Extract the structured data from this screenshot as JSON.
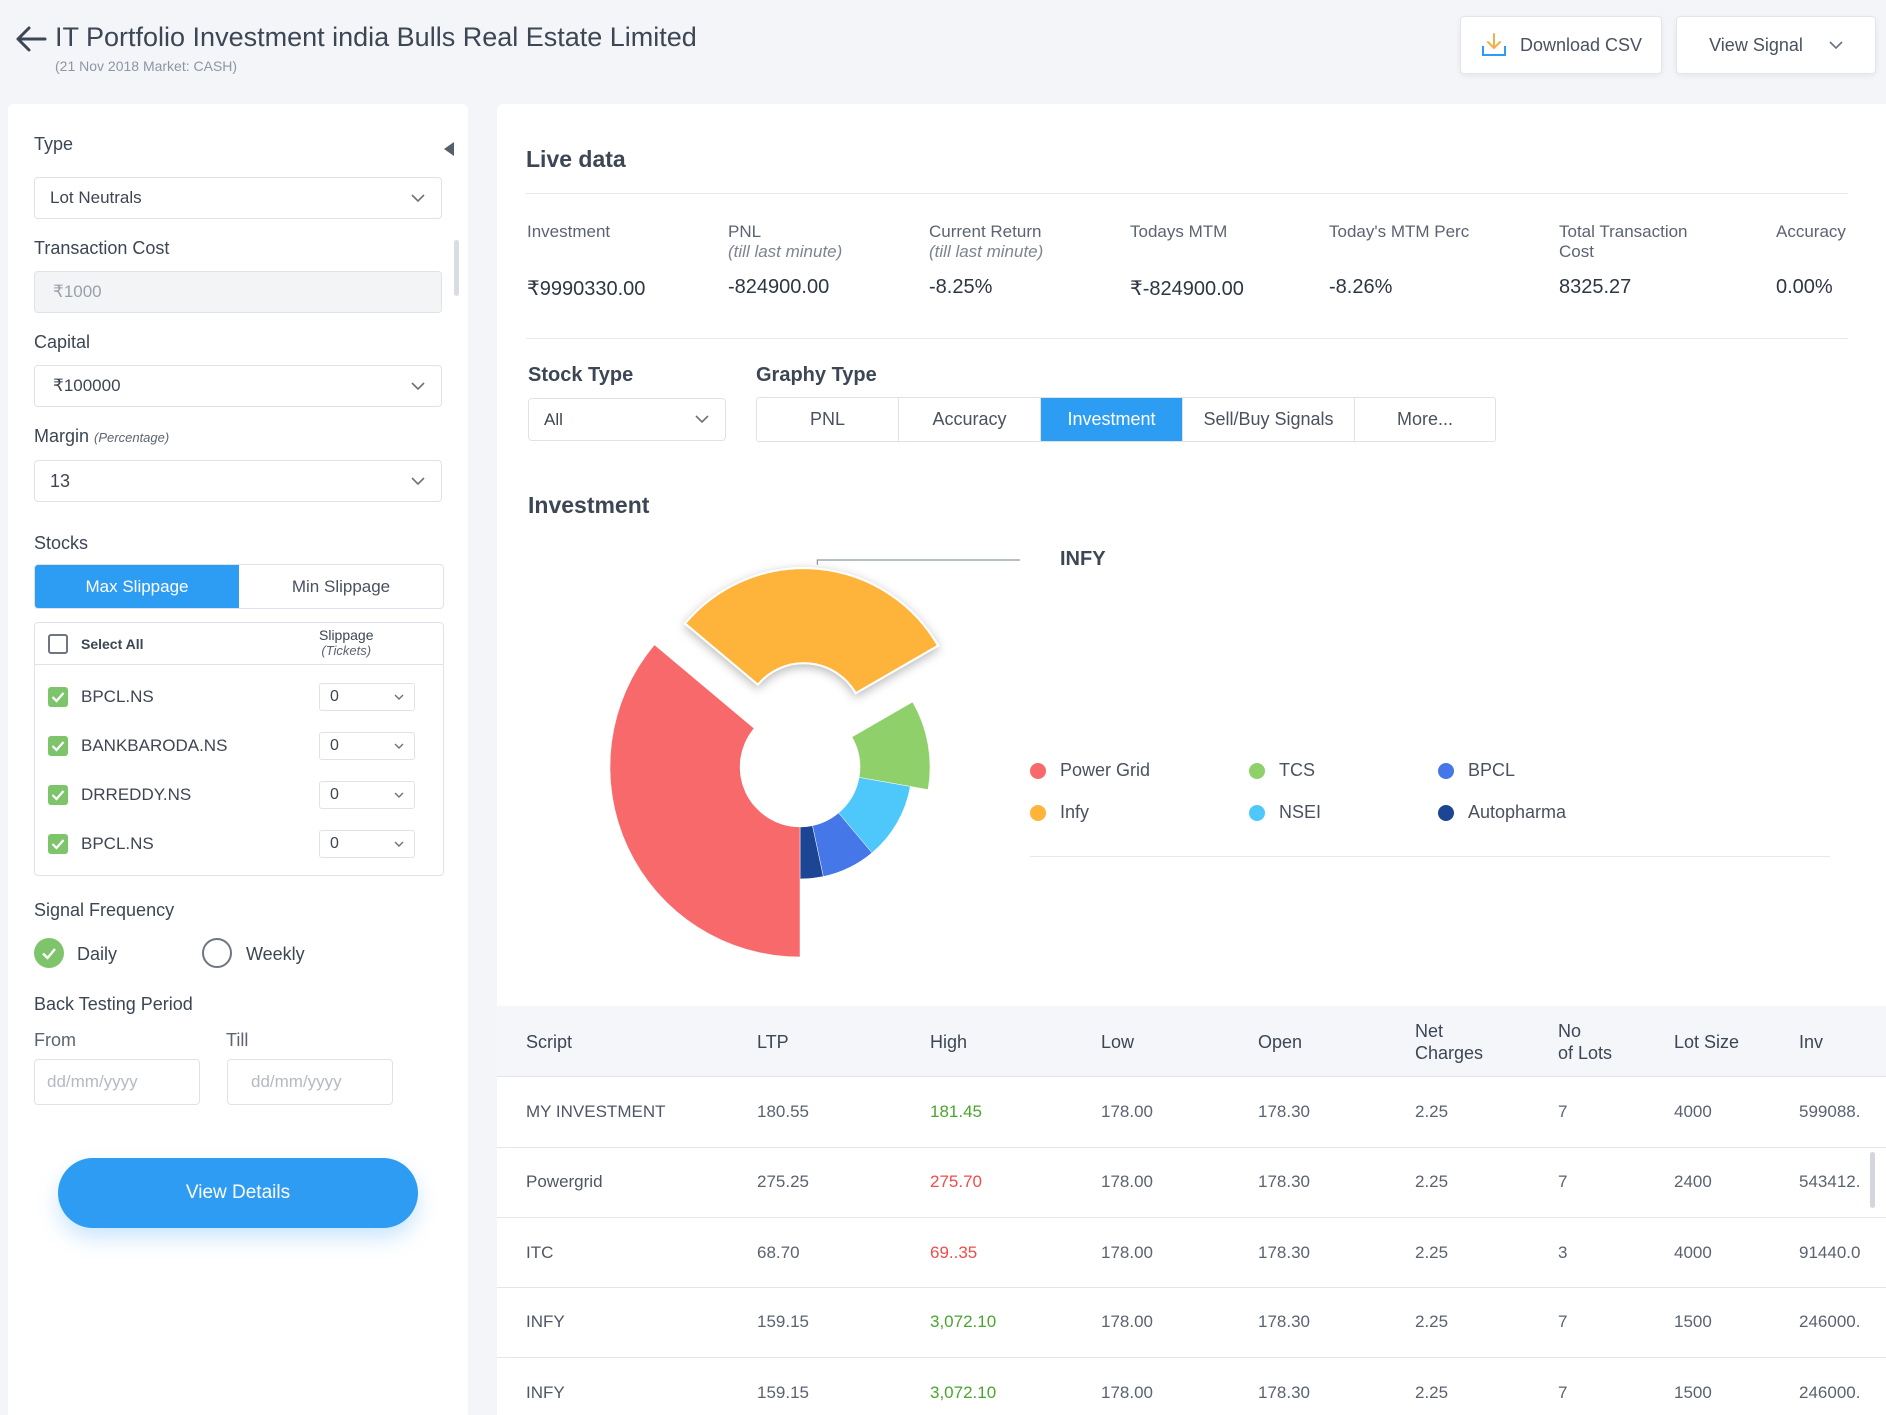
{
  "header": {
    "title": "IT Portfolio Investment india Bulls Real Estate Limited",
    "subtitle": "(21 Nov 2018 Market: CASH)",
    "download_label": "Download CSV",
    "view_signal_label": "View Signal"
  },
  "filters": {
    "type_label": "Type",
    "type_value": "Lot Neutrals",
    "transaction_cost_label": "Transaction Cost",
    "transaction_cost_placeholder": "₹1000",
    "capital_label": "Capital",
    "capital_value": "₹100000",
    "margin_label": "Margin",
    "margin_hint": "(Percentage)",
    "margin_value": "13",
    "stocks_label": "Stocks",
    "slippage_tabs": [
      "Max Slippage",
      "Min Slippage"
    ],
    "select_all_label": "Select All",
    "slippage_header": "Slippage",
    "slippage_sub": "(Tickets)",
    "stocks": [
      {
        "name": "BPCL.NS",
        "slippage": "0"
      },
      {
        "name": "BANKBARODA.NS",
        "slippage": "0"
      },
      {
        "name": "DRREDDY.NS",
        "slippage": "0"
      },
      {
        "name": "BPCL.NS",
        "slippage": "0"
      }
    ],
    "signal_frequency_label": "Signal Frequency",
    "freq_daily": "Daily",
    "freq_weekly": "Weekly",
    "back_testing_label": "Back Testing Period",
    "from_label": "From",
    "till_label": "Till",
    "date_placeholder": "dd/mm/yyyy",
    "view_details_label": "View Details"
  },
  "live": {
    "title": "Live data",
    "stats": [
      {
        "label": "Investment",
        "sub": "",
        "value": "₹9990330.00"
      },
      {
        "label": "PNL",
        "sub": "(till last minute)",
        "value": "-824900.00"
      },
      {
        "label": "Current Return",
        "sub": "(till last minute)",
        "value": "-8.25%"
      },
      {
        "label": "Todays MTM",
        "sub": "",
        "value": "₹-824900.00"
      },
      {
        "label": "Today's MTM Perc",
        "sub": "",
        "value": "-8.26%"
      },
      {
        "label": "Total Transaction Cost",
        "sub": "",
        "value": "8325.27"
      },
      {
        "label": "Accuracy",
        "sub": "",
        "value": "0.00%"
      }
    ]
  },
  "controls": {
    "stock_type_label": "Stock Type",
    "stock_type_value": "All",
    "graph_type_label": "Graphy Type",
    "graph_tabs": [
      "PNL",
      "Accuracy",
      "Investment",
      "Sell/Buy Signals",
      "More..."
    ],
    "active_tab": "Investment"
  },
  "chart_data": {
    "type": "pie",
    "title": "Investment",
    "callout": "INFY",
    "categories": [
      "Infy",
      "TCS",
      "NSEI",
      "BPCL",
      "Autopharma",
      "Power Grid"
    ],
    "values": [
      110,
      40,
      40,
      28,
      12,
      130
    ],
    "colors": {
      "Power Grid": "#f7696a",
      "Infy": "#feb33b",
      "TCS": "#8fd06b",
      "NSEI": "#4ec8fb",
      "BPCL": "#4677e8",
      "Autopharma": "#1c4594"
    },
    "legend": [
      "Power Grid",
      "TCS",
      "BPCL",
      "Infy",
      "NSEI",
      "Autopharma"
    ]
  },
  "table": {
    "headers": [
      {
        "l1": "Script",
        "l2": ""
      },
      {
        "l1": "LTP",
        "l2": ""
      },
      {
        "l1": "High",
        "l2": ""
      },
      {
        "l1": "Low",
        "l2": ""
      },
      {
        "l1": "Open",
        "l2": ""
      },
      {
        "l1": "Net",
        "l2": "Charges"
      },
      {
        "l1": "No",
        "l2": "of Lots"
      },
      {
        "l1": "Lot Size",
        "l2": ""
      },
      {
        "l1": "Inv",
        "l2": ""
      }
    ],
    "rows": [
      [
        "MY INVESTMENT",
        "180.55",
        "181.45",
        "178.00",
        "178.30",
        "2.25",
        "7",
        "4000",
        "599088."
      ],
      [
        "Powergrid",
        "275.25",
        "275.70",
        "178.00",
        "178.30",
        "2.25",
        "7",
        "2400",
        "543412."
      ],
      [
        "ITC",
        "68.70",
        "69..35",
        "178.00",
        "178.30",
        "2.25",
        "3",
        "4000",
        "91440.0"
      ],
      [
        "INFY",
        "159.15",
        "3,072.10",
        "178.00",
        "178.30",
        "2.25",
        "7",
        "1500",
        "246000."
      ],
      [
        "INFY",
        "159.15",
        "3,072.10",
        "178.00",
        "178.30",
        "2.25",
        "7",
        "1500",
        "246000."
      ]
    ],
    "high_colors": [
      "#4aa52e",
      "#f24b4b",
      "#f24b4b",
      "#4aa52e",
      "#4aa52e"
    ]
  }
}
